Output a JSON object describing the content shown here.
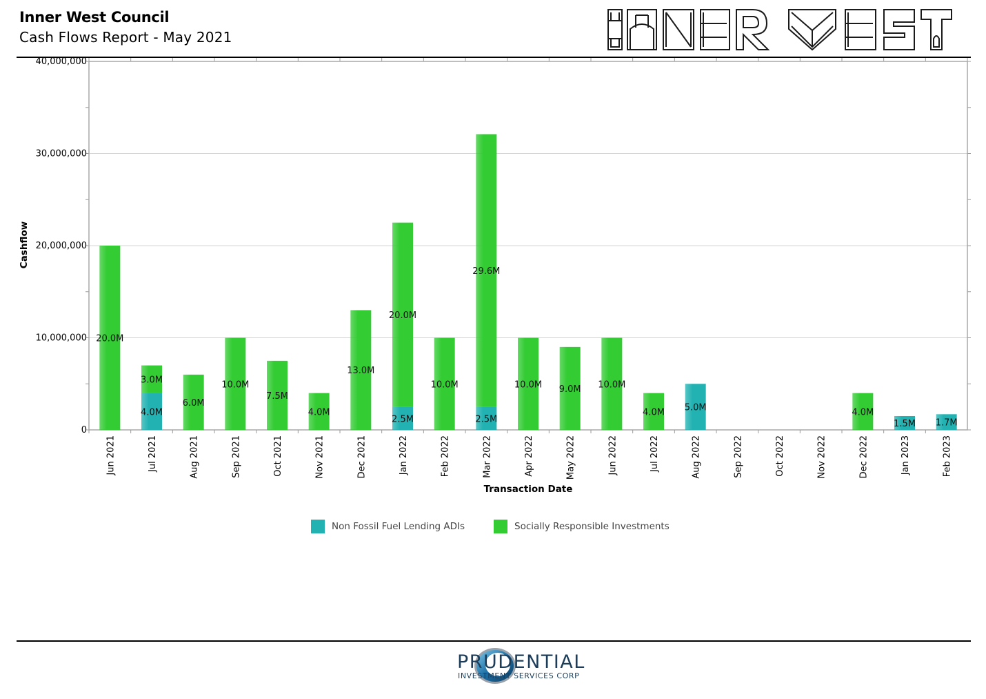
{
  "header": {
    "title": "Inner West Council",
    "subtitle": "Cash Flows Report - May 2021"
  },
  "logos": {
    "inner_west": "INNER WEST",
    "prudential_name": "PRUDENTIAL",
    "prudential_sub": "INVESTMENT SERVICES CORP"
  },
  "colors": {
    "non_fossil": "#22b2b2",
    "sri": "#33cc33",
    "prudential_navy": "#1c3d5a"
  },
  "chart_data": {
    "type": "bar",
    "stacked": true,
    "xlabel": "Transaction Date",
    "ylabel": "Cashflow",
    "ylim": [
      0,
      40000000
    ],
    "yticks": [
      0,
      10000000,
      20000000,
      30000000,
      40000000
    ],
    "ytick_labels": [
      "0",
      "10,000,000",
      "20,000,000",
      "30,000,000",
      "40,000,000"
    ],
    "grid": true,
    "legend_position": "bottom",
    "categories": [
      "Jun 2021",
      "Jul 2021",
      "Aug 2021",
      "Sep 2021",
      "Oct 2021",
      "Nov 2021",
      "Dec 2021",
      "Jan 2022",
      "Feb 2022",
      "Mar 2022",
      "Apr 2022",
      "May 2022",
      "Jun 2022",
      "Jul 2022",
      "Aug 2022",
      "Sep 2022",
      "Oct 2022",
      "Nov 2022",
      "Dec 2022",
      "Jan 2023",
      "Feb 2023"
    ],
    "series": [
      {
        "name": "Non Fossil Fuel Lending ADIs",
        "values": [
          0,
          4000000,
          0,
          0,
          0,
          0,
          0,
          2500000,
          0,
          2500000,
          0,
          0,
          0,
          0,
          5000000,
          0,
          0,
          0,
          0,
          1500000,
          1700000
        ],
        "labels": [
          "",
          "4.0M",
          "",
          "",
          "",
          "",
          "",
          "2.5M",
          "",
          "2.5M",
          "",
          "",
          "",
          "",
          "5.0M",
          "",
          "",
          "",
          "",
          "1.5M",
          "1.7M"
        ]
      },
      {
        "name": "Socially Responsible Investments",
        "values": [
          20000000,
          3000000,
          6000000,
          10000000,
          7500000,
          4000000,
          13000000,
          20000000,
          10000000,
          29600000,
          10000000,
          9000000,
          10000000,
          4000000,
          0,
          0,
          0,
          0,
          4000000,
          0,
          0
        ],
        "labels": [
          "20.0M",
          "3.0M",
          "6.0M",
          "10.0M",
          "7.5M",
          "4.0M",
          "13.0M",
          "20.0M",
          "10.0M",
          "29.6M",
          "10.0M",
          "9.0M",
          "10.0M",
          "4.0M",
          "",
          "",
          "",
          "",
          "4.0M",
          "",
          ""
        ]
      }
    ]
  }
}
